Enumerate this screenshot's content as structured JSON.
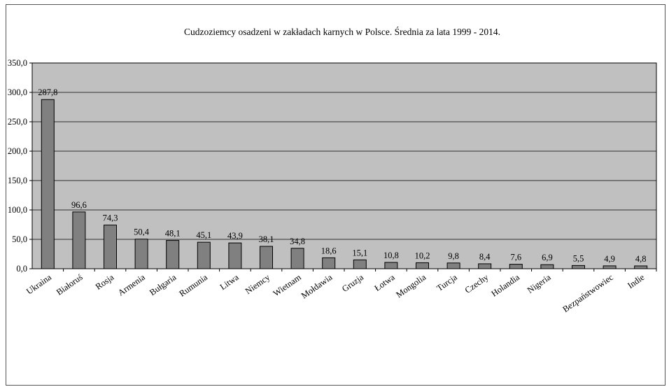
{
  "chart_data": {
    "type": "bar",
    "title": "Cudzoziemcy osadzeni w zakładach karnych w Polsce. Średnia za lata 1999 - 2014.",
    "categories": [
      "Ukraina",
      "Białoruś",
      "Rosja",
      "Armenia",
      "Bułgaria",
      "Rumunia",
      "Litwa",
      "Niemcy",
      "Wietnam",
      "Mołdawia",
      "Gruzja",
      "Łotwa",
      "Mongolia",
      "Turcja",
      "Czechy",
      "Holandia",
      "Nigeria",
      "",
      "Bezpaństwowiec",
      "Indie"
    ],
    "values": [
      287.8,
      96.6,
      74.3,
      50.4,
      48.1,
      45.1,
      43.9,
      38.1,
      34.8,
      18.6,
      15.1,
      10.8,
      10.2,
      9.8,
      8.4,
      7.6,
      6.9,
      5.5,
      4.9,
      4.8
    ],
    "value_labels": [
      "287,8",
      "96,6",
      "74,3",
      "50,4",
      "48,1",
      "45,1",
      "43,9",
      "38,1",
      "34,8",
      "18,6",
      "15,1",
      "10,8",
      "10,2",
      "9,8",
      "8,4",
      "7,6",
      "6,9",
      "5,5",
      "4,9",
      "4,8"
    ],
    "y_ticks": [
      "0,0",
      "50,0",
      "100,0",
      "150,0",
      "200,0",
      "250,0",
      "300,0",
      "350,0"
    ],
    "ylim": [
      0,
      350
    ],
    "grid": true,
    "colors": {
      "plot_bg": "#c0c0c0",
      "bar": "#808080",
      "bar_stroke": "#000000",
      "grid": "#000000"
    }
  }
}
